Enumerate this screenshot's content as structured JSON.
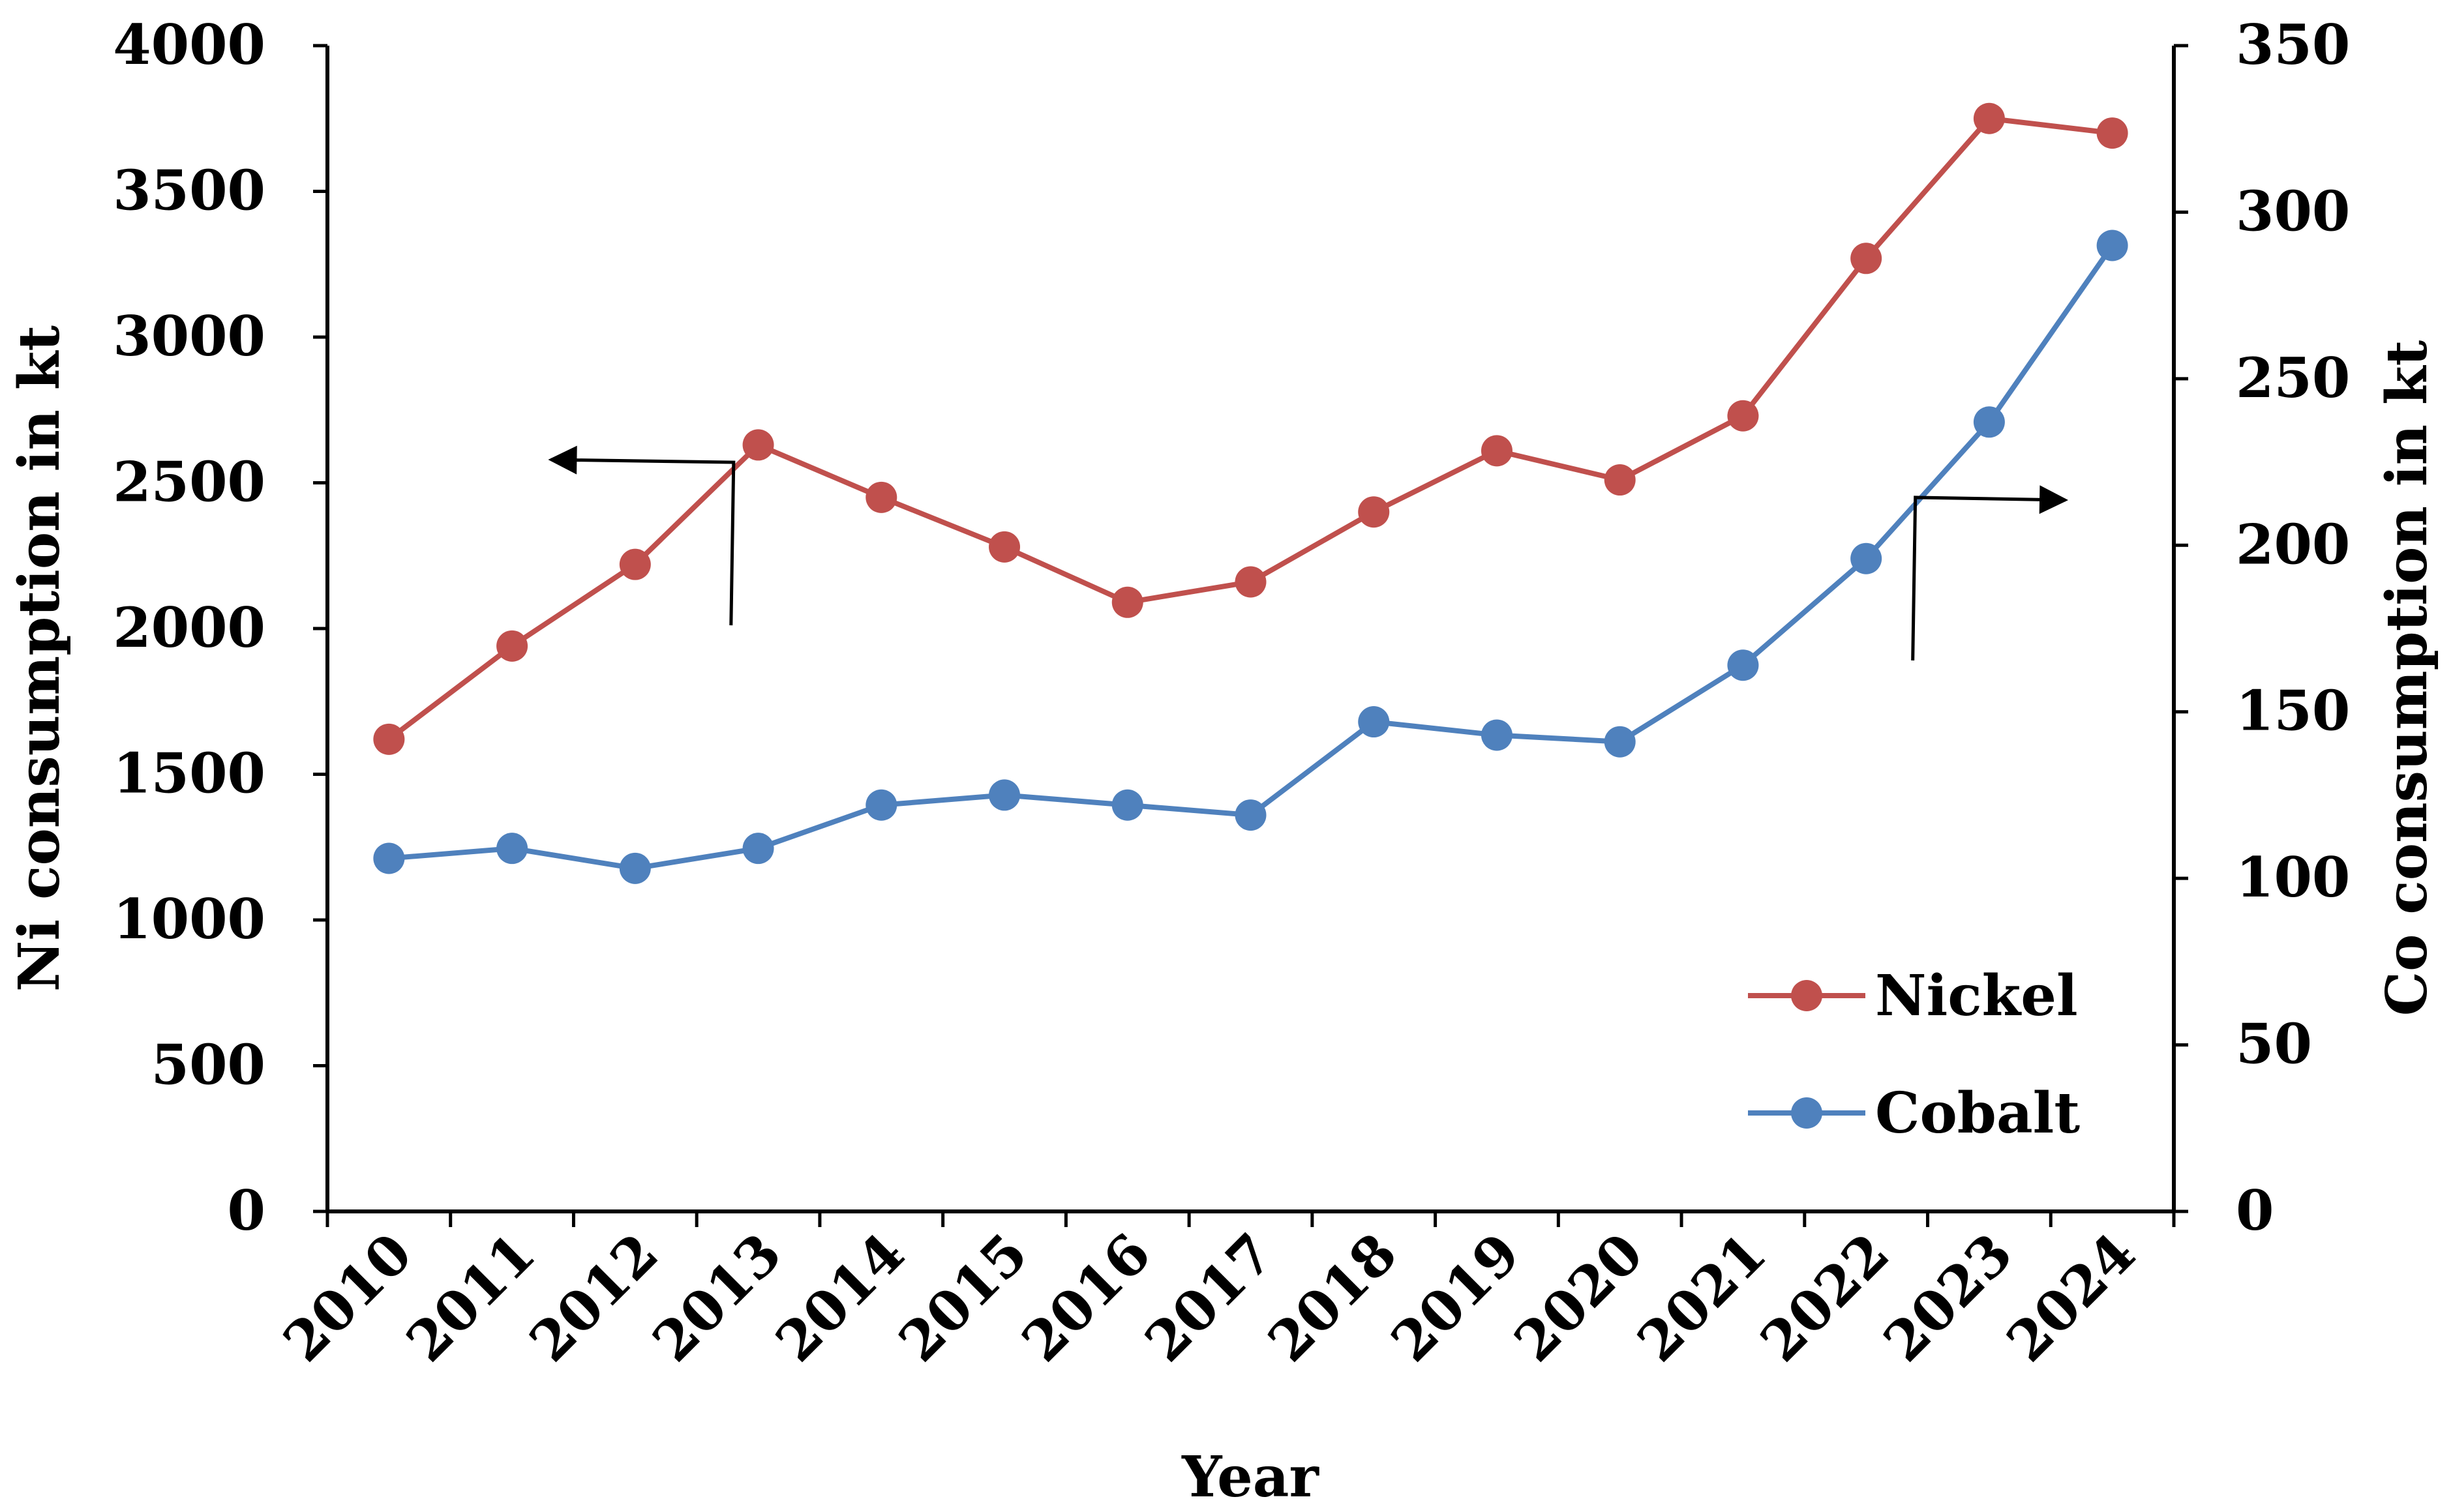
{
  "chart_data": {
    "type": "line",
    "title": "",
    "xlabel": "Year",
    "ylabel_left": "Ni consumption in kt",
    "ylabel_right": "Co consumption in kt",
    "categories": [
      "2010",
      "2011",
      "2012",
      "2013",
      "2014",
      "2015",
      "2016",
      "2017",
      "2018",
      "2019",
      "2020",
      "2021",
      "2022",
      "2023",
      "2024"
    ],
    "ylim_left": [
      0,
      4000
    ],
    "ylim_right": [
      0,
      350
    ],
    "yticks_left": [
      0,
      500,
      1000,
      1500,
      2000,
      2500,
      3000,
      3500,
      4000
    ],
    "yticks_right": [
      0,
      50,
      100,
      150,
      200,
      250,
      300,
      350
    ],
    "grid": false,
    "legend_position": "bottom-right",
    "series": [
      {
        "name": "Nickel",
        "axis": "left",
        "color": "#C0504D",
        "values": [
          1620,
          1940,
          2220,
          2630,
          2450,
          2280,
          2090,
          2160,
          2400,
          2610,
          2510,
          2730,
          3270,
          3750,
          3700
        ]
      },
      {
        "name": "Cobalt",
        "axis": "right",
        "color": "#4F81BD",
        "values": [
          106,
          109,
          103,
          109,
          122,
          125,
          122,
          119,
          147,
          143,
          141,
          164,
          196,
          237,
          290
        ]
      }
    ],
    "annotations": [
      {
        "series": "Nickel",
        "direction": "left",
        "anchor_x_index": 2.8
      },
      {
        "series": "Cobalt",
        "direction": "right",
        "anchor_x_index": 12.4
      }
    ]
  }
}
